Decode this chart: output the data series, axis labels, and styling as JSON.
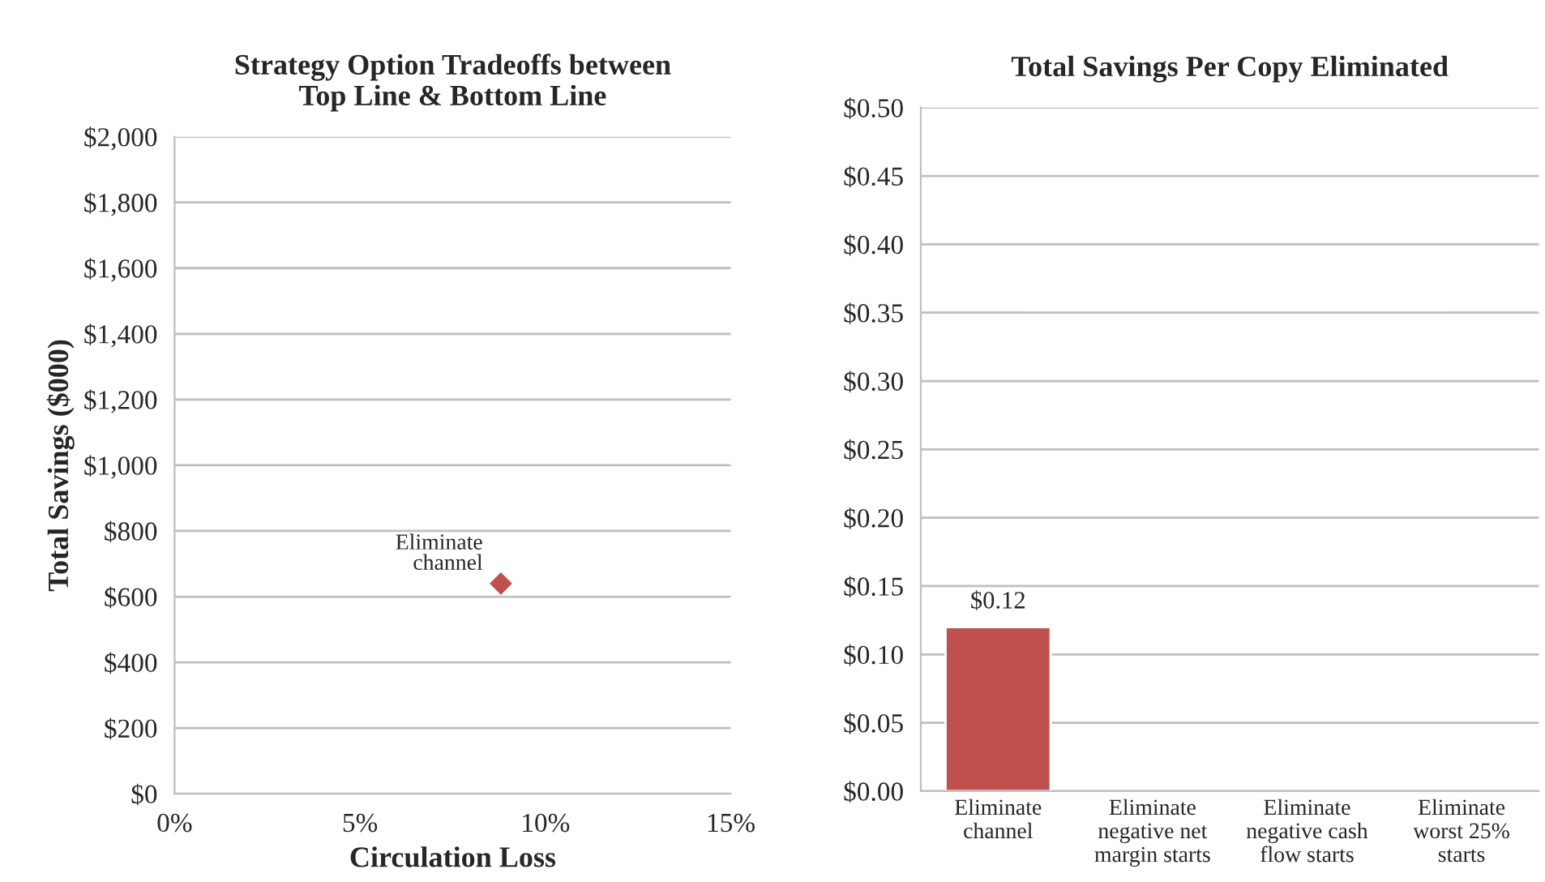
{
  "chart_data": [
    {
      "type": "scatter",
      "title": "Strategy Option Tradeoffs between\nTop Line & Bottom Line",
      "xlabel": "Circulation Loss",
      "ylabel": "Total Savings ($000)",
      "x": [
        8.8
      ],
      "values": [
        640
      ],
      "color": "#c0504d",
      "marker": "diamond",
      "xlim": [
        0,
        15
      ],
      "xticks": [
        {
          "value": 0,
          "label": "0%"
        },
        {
          "value": 5,
          "label": "5%"
        },
        {
          "value": 10,
          "label": "10%"
        },
        {
          "value": 15,
          "label": "15%"
        }
      ],
      "ylim": [
        0,
        2000
      ],
      "yticks": [
        {
          "value": 0,
          "label": "$0"
        },
        {
          "value": 200,
          "label": "$200"
        },
        {
          "value": 400,
          "label": "$400"
        },
        {
          "value": 600,
          "label": "$600"
        },
        {
          "value": 800,
          "label": "$800"
        },
        {
          "value": 1000,
          "label": "$1,000"
        },
        {
          "value": 1200,
          "label": "$1,200"
        },
        {
          "value": 1400,
          "label": "$1,400"
        },
        {
          "value": 1600,
          "label": "$1,600"
        },
        {
          "value": 1800,
          "label": "$1,800"
        },
        {
          "value": 2000,
          "label": "$2,000"
        }
      ],
      "grid": "y",
      "annotations": [
        {
          "text": "Eliminate\nchannel",
          "x": 8.8,
          "y": 640
        }
      ]
    },
    {
      "type": "bar",
      "title": "Total Savings Per Copy Eliminated",
      "categories": [
        "Eliminate channel",
        "Eliminate negative net margin starts",
        "Eliminate negative cash flow starts",
        "Eliminate worst 25% starts"
      ],
      "values": [
        0.12,
        null,
        null,
        null
      ],
      "value_labels": [
        "$0.12",
        null,
        null,
        null
      ],
      "color": "#c0504d",
      "ylim": [
        0,
        0.5
      ],
      "yticks": [
        {
          "value": 0,
          "label": "$0.00"
        },
        {
          "value": 0.05,
          "label": "$0.05"
        },
        {
          "value": 0.1,
          "label": "$0.10"
        },
        {
          "value": 0.15,
          "label": "$0.15"
        },
        {
          "value": 0.2,
          "label": "$0.20"
        },
        {
          "value": 0.25,
          "label": "$0.25"
        },
        {
          "value": 0.3,
          "label": "$0.30"
        },
        {
          "value": 0.35,
          "label": "$0.35"
        },
        {
          "value": 0.4,
          "label": "$0.40"
        },
        {
          "value": 0.45,
          "label": "$0.45"
        },
        {
          "value": 0.5,
          "label": "$0.50"
        }
      ],
      "grid": "y"
    }
  ]
}
